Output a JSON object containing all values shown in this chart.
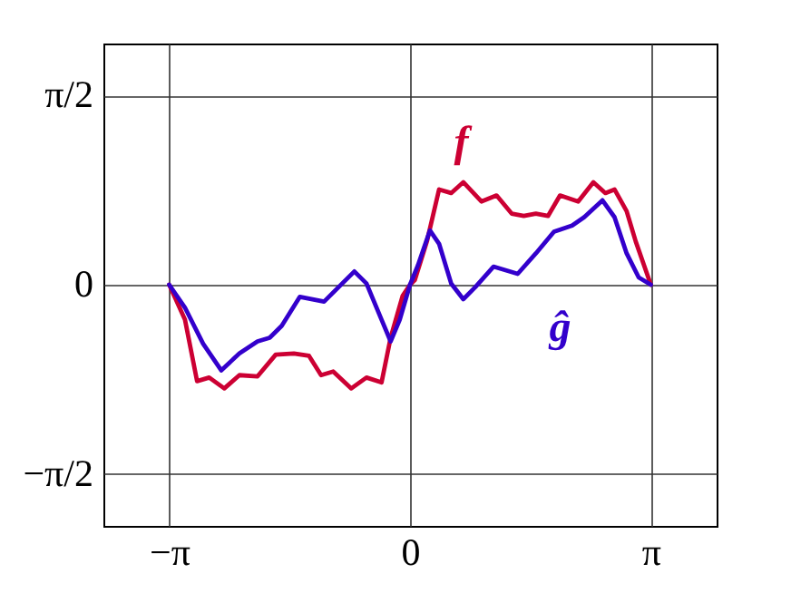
{
  "chart_data": {
    "type": "line",
    "xlim": [
      -4,
      4
    ],
    "ylim": [
      -2,
      2
    ],
    "xticks": [
      {
        "value": -3.1416,
        "label": "−π"
      },
      0,
      {
        "value": 3.1416,
        "label": "π"
      }
    ],
    "yticks": [
      {
        "value": -1.5708,
        "label": "−π/2"
      },
      0,
      {
        "value": 1.5708,
        "label": "π/2"
      }
    ],
    "grid": true,
    "legend": false,
    "marker": "none",
    "line_style": "solid",
    "series": [
      {
        "name": "f",
        "color": "#cc0033",
        "x": [
          -3.1416,
          -2.936,
          -2.778,
          -2.62,
          -2.423,
          -2.226,
          -1.989,
          -1.752,
          -1.515,
          -1.318,
          -1.16,
          -1.002,
          -0.766,
          -0.568,
          -0.371,
          -0.253,
          -0.095,
          0,
          0.063,
          0.221,
          0.379,
          0.537,
          0.695,
          0.931,
          1.129,
          1.326,
          1.484,
          1.642,
          1.8,
          1.957,
          2.194,
          2.392,
          2.549,
          2.668,
          2.826,
          2.944,
          3.1416
        ],
        "values": [
          0,
          -0.29,
          -0.8,
          -0.77,
          -0.86,
          -0.75,
          -0.76,
          -0.58,
          -0.57,
          -0.59,
          -0.75,
          -0.72,
          -0.86,
          -0.77,
          -0.81,
          -0.44,
          -0.09,
          0,
          0.04,
          0.36,
          0.79,
          0.76,
          0.85,
          0.69,
          0.74,
          0.59,
          0.57,
          0.59,
          0.57,
          0.74,
          0.69,
          0.85,
          0.76,
          0.79,
          0.61,
          0.36,
          0
        ]
      },
      {
        "name": "ĝ",
        "color": "#3300cc",
        "x": [
          -3.1416,
          -2.936,
          -2.699,
          -2.463,
          -2.226,
          -1.989,
          -1.831,
          -1.673,
          -1.437,
          -1.121,
          -0.884,
          -0.726,
          -0.568,
          -0.371,
          -0.253,
          -0.134,
          0,
          0.103,
          0.26,
          0.379,
          0.537,
          0.695,
          0.852,
          1.089,
          1.405,
          1.642,
          1.879,
          2.115,
          2.273,
          2.51,
          2.668,
          2.826,
          2.984,
          3.1416
        ],
        "values": [
          0,
          -0.19,
          -0.49,
          -0.71,
          -0.57,
          -0.47,
          -0.44,
          -0.34,
          -0.1,
          -0.14,
          0.01,
          0.11,
          0.01,
          -0.29,
          -0.47,
          -0.29,
          0,
          0.16,
          0.45,
          0.34,
          0.01,
          -0.12,
          -0.02,
          0.15,
          0.09,
          0.26,
          0.44,
          0.49,
          0.56,
          0.7,
          0.56,
          0.26,
          0.06,
          0
        ]
      }
    ]
  }
}
